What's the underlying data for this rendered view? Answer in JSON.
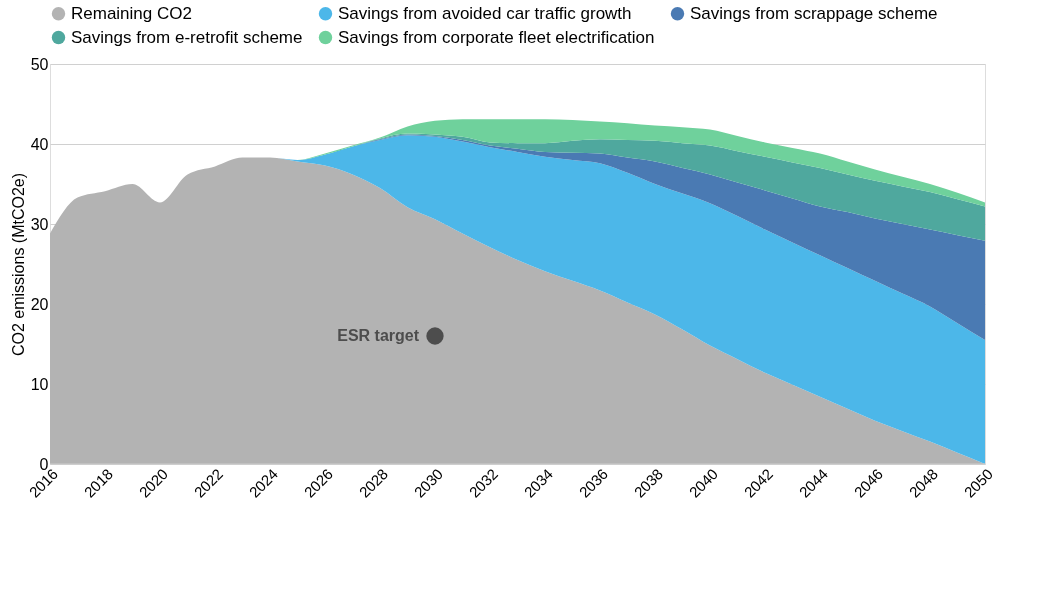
{
  "chart_data": {
    "type": "area",
    "ylabel": "CO2 emissions (MtCO2e)",
    "x": [
      2016,
      2017,
      2018,
      2019,
      2020,
      2021,
      2022,
      2023,
      2024,
      2025,
      2026,
      2027,
      2028,
      2029,
      2030,
      2031,
      2032,
      2033,
      2034,
      2035,
      2036,
      2037,
      2038,
      2039,
      2040,
      2041,
      2042,
      2043,
      2044,
      2045,
      2046,
      2047,
      2048,
      2049,
      2050
    ],
    "stacked": true,
    "series": [
      {
        "name": "Remaining CO2",
        "color": "#b3b3b3",
        "values": [
          28.8,
          33.3,
          34.1,
          35.0,
          32.7,
          36.2,
          37.2,
          38.3,
          38.3,
          37.8,
          37.3,
          36.2,
          34.5,
          32.1,
          30.6,
          28.8,
          27.1,
          25.5,
          24.1,
          22.9,
          21.7,
          20.2,
          18.7,
          16.8,
          14.8,
          13.1,
          11.4,
          9.9,
          8.4,
          6.9,
          5.4,
          4.1,
          2.8,
          1.4,
          0
        ]
      },
      {
        "name": "Savings from avoided car traffic growth",
        "color": "#4cb7e9",
        "values": [
          0,
          0,
          0,
          0,
          0,
          0,
          0,
          0,
          0,
          0.2,
          1.4,
          3.5,
          6.0,
          9.0,
          10.3,
          11.5,
          12.5,
          13.5,
          14.3,
          15.1,
          15.9,
          16.2,
          16.3,
          17.0,
          17.8,
          17.9,
          17.9,
          17.8,
          17.7,
          17.6,
          17.5,
          17.2,
          16.9,
          16.2,
          15.5
        ]
      },
      {
        "name": "Savings from scrappage scheme",
        "color": "#4a7ab3",
        "values": [
          0,
          0,
          0,
          0,
          0,
          0,
          0,
          0,
          0,
          0,
          0,
          0,
          0.1,
          0.1,
          0.1,
          0.2,
          0.2,
          0.4,
          0.6,
          0.9,
          1.2,
          1.9,
          2.8,
          3.2,
          3.6,
          4.2,
          4.9,
          5.5,
          6.1,
          7.0,
          7.8,
          8.7,
          9.6,
          11.0,
          12.4
        ]
      },
      {
        "name": "Savings from e-retrofit scheme",
        "color": "#4fa89e",
        "values": [
          0,
          0,
          0,
          0,
          0,
          0,
          0,
          0,
          0,
          0,
          0,
          0,
          0.1,
          0.1,
          0.2,
          0.4,
          0.4,
          0.7,
          1.1,
          1.5,
          1.8,
          2.2,
          2.6,
          3.1,
          3.6,
          3.9,
          4.2,
          4.5,
          4.8,
          4.7,
          4.7,
          4.7,
          4.7,
          4.5,
          4.3
        ]
      },
      {
        "name": "Savings from corporate fleet electrification",
        "color": "#6fd19c",
        "values": [
          0,
          0,
          0,
          0,
          0,
          0,
          0,
          0,
          0,
          0,
          0.1,
          0.1,
          0.1,
          0.9,
          1.7,
          2.2,
          2.9,
          3.0,
          3.0,
          2.6,
          2.2,
          2.1,
          1.9,
          2.0,
          2.0,
          1.9,
          1.8,
          1.8,
          1.8,
          1.6,
          1.4,
          1.2,
          1.0,
          0.8,
          0.5
        ]
      },
      {
        "type": "scatter",
        "color": "#4d4d4d",
        "x": [
          2030
        ],
        "values": [
          16
        ]
      }
    ],
    "annotations": [
      {
        "text": "ESR target",
        "x": 2030,
        "y": 16
      }
    ],
    "xlim": [
      2016,
      2050
    ],
    "xticks": [
      2016,
      2018,
      2020,
      2022,
      2024,
      2026,
      2028,
      2030,
      2032,
      2034,
      2036,
      2038,
      2040,
      2042,
      2044,
      2046,
      2048,
      2050
    ],
    "ylim": [
      0,
      50
    ],
    "yticks": [
      0,
      10,
      20,
      30,
      40,
      50
    ],
    "grid": "y",
    "legend": "top"
  }
}
